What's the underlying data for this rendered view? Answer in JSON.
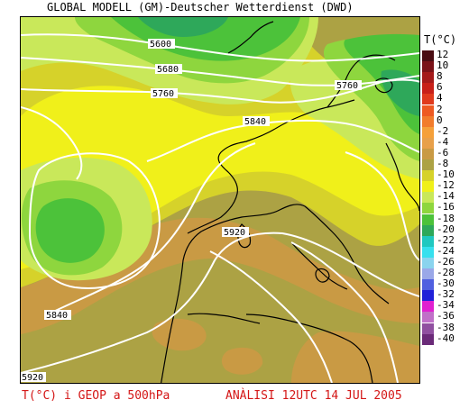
{
  "header": {
    "title": "GLOBAL MODELL (GM)-Deutscher Wetterdienst (DWD)"
  },
  "legend": {
    "unit": "T(°C)",
    "entries": [
      {
        "label": "12",
        "color": "#4a0c12"
      },
      {
        "label": "10",
        "color": "#7a1218"
      },
      {
        "label": "8",
        "color": "#a41a1a"
      },
      {
        "label": "6",
        "color": "#c82018"
      },
      {
        "label": "4",
        "color": "#e03a1c"
      },
      {
        "label": "2",
        "color": "#ee5a22"
      },
      {
        "label": "0",
        "color": "#f27c2c"
      },
      {
        "label": "-2",
        "color": "#f5a03a"
      },
      {
        "label": "-4",
        "color": "#e8a04a"
      },
      {
        "label": "-6",
        "color": "#c99a44"
      },
      {
        "label": "-8",
        "color": "#aca244"
      },
      {
        "label": "-10",
        "color": "#d6d22a"
      },
      {
        "label": "-12",
        "color": "#f0f01a"
      },
      {
        "label": "-14",
        "color": "#c9e85a"
      },
      {
        "label": "-16",
        "color": "#8ed63e"
      },
      {
        "label": "-18",
        "color": "#4cc23a"
      },
      {
        "label": "-20",
        "color": "#2ea85a"
      },
      {
        "label": "-22",
        "color": "#20c8c0"
      },
      {
        "label": "-24",
        "color": "#36e0ee"
      },
      {
        "label": "-26",
        "color": "#8ad4ee"
      },
      {
        "label": "-28",
        "color": "#9aa8e8"
      },
      {
        "label": "-30",
        "color": "#5060e0"
      },
      {
        "label": "-32",
        "color": "#2020d8"
      },
      {
        "label": "-34",
        "color": "#e020d0"
      },
      {
        "label": "-36",
        "color": "#c070c8"
      },
      {
        "label": "-38",
        "color": "#9050a0"
      },
      {
        "label": "-40",
        "color": "#6a2a78"
      }
    ]
  },
  "isolines": {
    "labels": [
      "5600",
      "5680",
      "5760",
      "5840",
      "5920",
      "5760",
      "5840",
      "5920"
    ]
  },
  "footer": {
    "left": "T(°C) i GEOP a 500hPa",
    "right": "ANÀLISI 12UTC 14 JUL 2005"
  }
}
